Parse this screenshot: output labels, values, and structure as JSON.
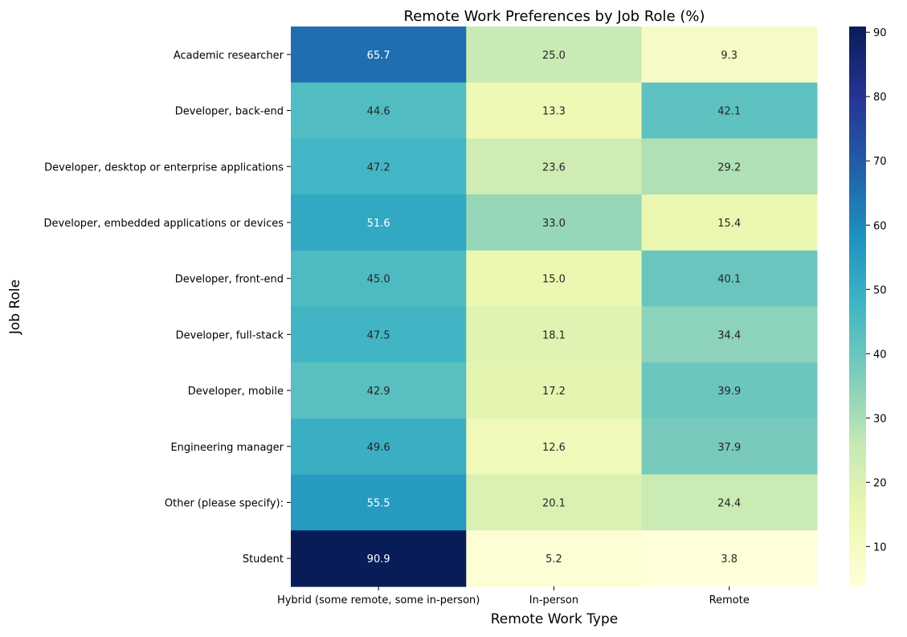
{
  "chart_data": {
    "type": "heatmap",
    "title": "Remote Work Preferences by Job Role (%)",
    "xlabel": "Remote Work Type",
    "ylabel": "Job Role",
    "columns": [
      "Hybrid (some remote, some in-person)",
      "In-person",
      "Remote"
    ],
    "rows": [
      "Academic researcher",
      "Developer, back-end",
      "Developer, desktop or enterprise applications",
      "Developer, embedded applications or devices",
      "Developer, front-end",
      "Developer, full-stack",
      "Developer, mobile",
      "Engineering manager",
      "Other (please specify):",
      "Student"
    ],
    "values": [
      [
        65.7,
        25.0,
        9.3
      ],
      [
        44.6,
        13.3,
        42.1
      ],
      [
        47.2,
        23.6,
        29.2
      ],
      [
        51.6,
        33.0,
        15.4
      ],
      [
        45.0,
        15.0,
        40.1
      ],
      [
        47.5,
        18.1,
        34.4
      ],
      [
        42.9,
        17.2,
        39.9
      ],
      [
        49.6,
        12.6,
        37.9
      ],
      [
        55.5,
        20.1,
        24.4
      ],
      [
        90.9,
        5.2,
        3.8
      ]
    ],
    "colormap": "YlGnBu",
    "colorbar": {
      "min": 3.8,
      "max": 90.9,
      "ticks": [
        10,
        20,
        30,
        40,
        50,
        60,
        70,
        80,
        90
      ]
    },
    "annotations": true,
    "grid": false
  }
}
